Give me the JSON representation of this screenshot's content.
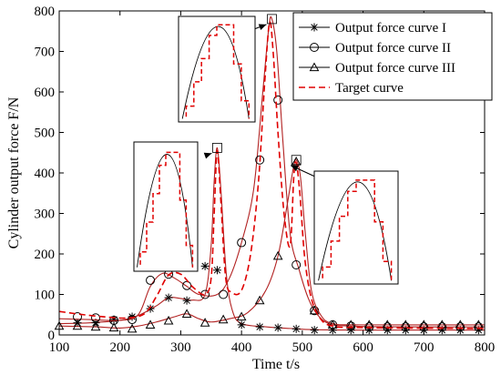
{
  "chart_data": {
    "type": "line",
    "xlabel": "Time t/s",
    "ylabel": "Cylinder output force F/N",
    "xlim": [
      100,
      800
    ],
    "ylim": [
      0,
      800
    ],
    "xticks": [
      100,
      200,
      300,
      400,
      500,
      600,
      700,
      800
    ],
    "yticks": [
      0,
      100,
      200,
      300,
      400,
      500,
      600,
      700,
      800
    ],
    "legend_position": "top-right",
    "series": [
      {
        "name": "Output force curve I",
        "marker": "asterisk",
        "color": "#000000",
        "fit_color": "#b22222",
        "x": [
          130,
          160,
          190,
          220,
          250,
          280,
          310,
          340,
          360,
          400,
          430,
          460,
          490,
          520,
          550,
          580,
          610,
          640,
          670,
          700,
          730,
          760,
          790
        ],
        "y": [
          30,
          30,
          38,
          45,
          65,
          92,
          85,
          170,
          160,
          25,
          20,
          18,
          15,
          12,
          12,
          12,
          12,
          12,
          12,
          12,
          12,
          12,
          12
        ],
        "fit": [
          [
            100,
            28
          ],
          [
            150,
            30
          ],
          [
            200,
            36
          ],
          [
            230,
            48
          ],
          [
            260,
            72
          ],
          [
            280,
            92
          ],
          [
            300,
            90
          ],
          [
            320,
            86
          ],
          [
            340,
            100
          ],
          [
            350,
            220
          ],
          [
            355,
            380
          ],
          [
            360,
            462
          ],
          [
            366,
            360
          ],
          [
            375,
            150
          ],
          [
            385,
            60
          ],
          [
            400,
            28
          ],
          [
            440,
            20
          ],
          [
            480,
            16
          ],
          [
            520,
            13
          ],
          [
            600,
            12
          ],
          [
            800,
            12
          ]
        ]
      },
      {
        "name": "Output force curve II",
        "marker": "circle",
        "color": "#000000",
        "fit_color": "#b22222",
        "x": [
          130,
          160,
          190,
          220,
          250,
          280,
          310,
          340,
          370,
          400,
          430,
          460,
          490,
          520,
          550,
          580,
          610,
          640,
          670,
          700,
          730,
          760,
          790
        ],
        "y": [
          45,
          42,
          36,
          38,
          135,
          150,
          122,
          100,
          100,
          228,
          432,
          580,
          173,
          60,
          25,
          22,
          20,
          20,
          20,
          20,
          20,
          20,
          20
        ],
        "fit": [
          [
            100,
            40
          ],
          [
            150,
            38
          ],
          [
            200,
            36
          ],
          [
            230,
            50
          ],
          [
            250,
            120
          ],
          [
            270,
            152
          ],
          [
            290,
            140
          ],
          [
            310,
            120
          ],
          [
            330,
            100
          ],
          [
            360,
            100
          ],
          [
            380,
            140
          ],
          [
            400,
            228
          ],
          [
            420,
            360
          ],
          [
            435,
            600
          ],
          [
            445,
            760
          ],
          [
            450,
            780
          ],
          [
            458,
            700
          ],
          [
            468,
            480
          ],
          [
            480,
            250
          ],
          [
            495,
            160
          ],
          [
            510,
            90
          ],
          [
            525,
            50
          ],
          [
            545,
            27
          ],
          [
            580,
            22
          ],
          [
            650,
            20
          ],
          [
            800,
            20
          ]
        ]
      },
      {
        "name": "Output force curve III",
        "marker": "triangle",
        "color": "#000000",
        "fit_color": "#b22222",
        "x": [
          100,
          130,
          160,
          190,
          220,
          250,
          280,
          310,
          340,
          370,
          400,
          430,
          460,
          490,
          520,
          550,
          580,
          610,
          640,
          670,
          700,
          730,
          760,
          790
        ],
        "y": [
          22,
          22,
          20,
          18,
          15,
          25,
          35,
          52,
          30,
          38,
          45,
          85,
          195,
          428,
          60,
          25,
          25,
          25,
          25,
          25,
          25,
          25,
          25,
          25
        ],
        "fit": [
          [
            100,
            22
          ],
          [
            160,
            20
          ],
          [
            200,
            17
          ],
          [
            230,
            22
          ],
          [
            260,
            32
          ],
          [
            290,
            45
          ],
          [
            310,
            52
          ],
          [
            330,
            40
          ],
          [
            350,
            32
          ],
          [
            380,
            40
          ],
          [
            410,
            55
          ],
          [
            440,
            110
          ],
          [
            460,
            195
          ],
          [
            475,
            320
          ],
          [
            485,
            410
          ],
          [
            490,
            432
          ],
          [
            497,
            390
          ],
          [
            505,
            250
          ],
          [
            515,
            110
          ],
          [
            530,
            50
          ],
          [
            550,
            28
          ],
          [
            600,
            25
          ],
          [
            800,
            25
          ]
        ]
      },
      {
        "name": "Target curve",
        "style": "dashed",
        "color": "#e00000",
        "fit": [
          [
            100,
            58
          ],
          [
            140,
            50
          ],
          [
            180,
            44
          ],
          [
            210,
            42
          ],
          [
            240,
            52
          ],
          [
            260,
            95
          ],
          [
            280,
            148
          ],
          [
            300,
            150
          ],
          [
            320,
            118
          ],
          [
            340,
            100
          ],
          [
            350,
            140
          ],
          [
            355,
            300
          ],
          [
            360,
            455
          ],
          [
            366,
            330
          ],
          [
            374,
            140
          ],
          [
            384,
            105
          ],
          [
            400,
            110
          ],
          [
            415,
            200
          ],
          [
            428,
            380
          ],
          [
            438,
            620
          ],
          [
            446,
            770
          ],
          [
            452,
            700
          ],
          [
            460,
            500
          ],
          [
            470,
            300
          ],
          [
            480,
            220
          ],
          [
            486,
            390
          ],
          [
            490,
            425
          ],
          [
            496,
            350
          ],
          [
            504,
            190
          ],
          [
            515,
            90
          ],
          [
            530,
            40
          ],
          [
            550,
            22
          ],
          [
            600,
            18
          ],
          [
            800,
            16
          ]
        ]
      }
    ],
    "inset_zooms": [
      {
        "target_x": 360,
        "target_y": 462
      },
      {
        "target_x": 450,
        "target_y": 780
      },
      {
        "target_x": 490,
        "target_y": 432
      }
    ]
  }
}
